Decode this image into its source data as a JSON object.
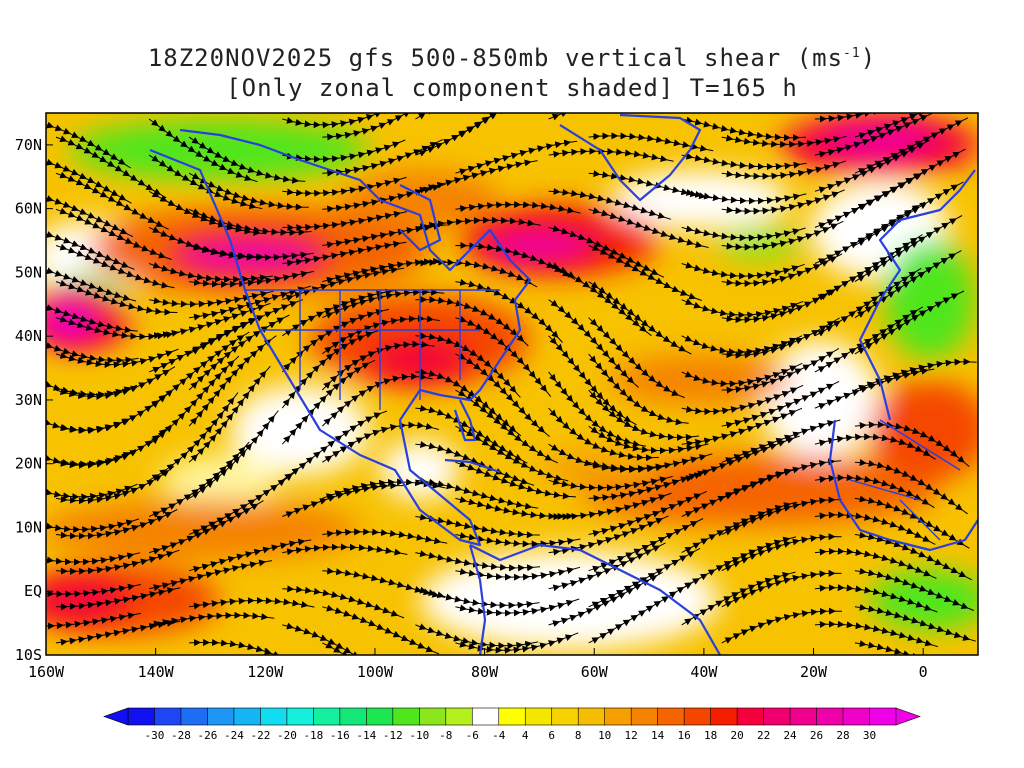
{
  "title": {
    "line1_prefix": "18Z20NOV2025 gfs 500-850mb vertical shear (ms",
    "line1_sup": "-1",
    "line1_suffix": ")",
    "line2": "[Only zonal component shaded] T=165 h"
  },
  "map": {
    "lon_range": [
      -160,
      10
    ],
    "lat_range": [
      -10,
      75
    ],
    "lat_ticks": [
      {
        "value": 70,
        "label": "70N"
      },
      {
        "value": 60,
        "label": "60N"
      },
      {
        "value": 50,
        "label": "50N"
      },
      {
        "value": 40,
        "label": "40N"
      },
      {
        "value": 30,
        "label": "30N"
      },
      {
        "value": 20,
        "label": "20N"
      },
      {
        "value": 10,
        "label": "10N"
      },
      {
        "value": 0,
        "label": "EQ"
      },
      {
        "value": -10,
        "label": "10S"
      }
    ],
    "lon_ticks": [
      {
        "value": -160,
        "label": "160W"
      },
      {
        "value": -140,
        "label": "140W"
      },
      {
        "value": -120,
        "label": "120W"
      },
      {
        "value": -100,
        "label": "100W"
      },
      {
        "value": -80,
        "label": "80W"
      },
      {
        "value": -60,
        "label": "60W"
      },
      {
        "value": -40,
        "label": "40W"
      },
      {
        "value": -20,
        "label": "20W"
      },
      {
        "value": 0,
        "label": "0"
      }
    ],
    "coastline_color": "#2a3fe0",
    "streamline_color": "#000000"
  },
  "colorbar": {
    "labels": [
      "-30",
      "-28",
      "-26",
      "-24",
      "-22",
      "-20",
      "-18",
      "-16",
      "-14",
      "-12",
      "-10",
      "-8",
      "-6",
      "-4",
      "4",
      "6",
      "8",
      "10",
      "12",
      "14",
      "16",
      "18",
      "20",
      "22",
      "24",
      "26",
      "28",
      "30"
    ],
    "colors": [
      "#1010f0",
      "#1e46f5",
      "#1e6ef5",
      "#1e96f5",
      "#14b4f5",
      "#14dcf0",
      "#14f0dc",
      "#14f0a0",
      "#14e678",
      "#1ee650",
      "#50e61e",
      "#8ce61e",
      "#b4f01e",
      "#ffffff",
      "#ffff00",
      "#f5e600",
      "#f5d200",
      "#f5be00",
      "#f5a000",
      "#f58200",
      "#f56400",
      "#f54600",
      "#f51e00",
      "#f5003c",
      "#f0006e",
      "#f0008c",
      "#f000aa",
      "#f000c8",
      "#f000e6"
    ]
  }
}
